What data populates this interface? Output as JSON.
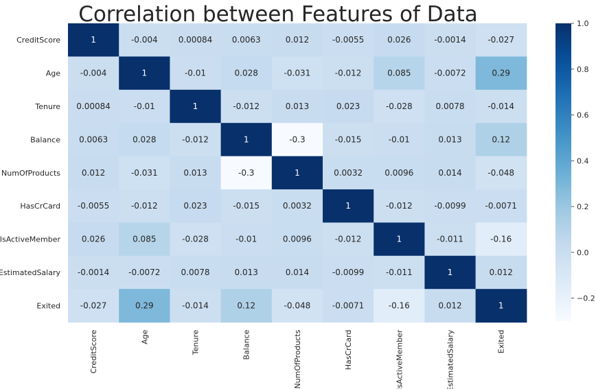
{
  "chart_data": {
    "type": "heatmap",
    "title": "Correlation between Features of Data",
    "xlabel": "",
    "ylabel": "",
    "labels": [
      "CreditScore",
      "Age",
      "Tenure",
      "Balance",
      "NumOfProducts",
      "HasCrCard",
      "IsActiveMember",
      "EstimatedSalary",
      "Exited"
    ],
    "matrix": [
      [
        1,
        -0.004,
        0.00084,
        0.0063,
        0.012,
        -0.0055,
        0.026,
        -0.0014,
        -0.027
      ],
      [
        -0.004,
        1,
        -0.01,
        0.028,
        -0.031,
        -0.012,
        0.085,
        -0.0072,
        0.29
      ],
      [
        0.00084,
        -0.01,
        1,
        -0.012,
        0.013,
        0.023,
        -0.028,
        0.0078,
        -0.014
      ],
      [
        0.0063,
        0.028,
        -0.012,
        1,
        -0.3,
        -0.015,
        -0.01,
        0.013,
        0.12
      ],
      [
        0.012,
        -0.031,
        0.013,
        -0.3,
        1,
        0.0032,
        0.0096,
        0.014,
        -0.048
      ],
      [
        -0.0055,
        -0.012,
        0.023,
        -0.015,
        0.0032,
        1,
        -0.012,
        -0.0099,
        -0.0071
      ],
      [
        0.026,
        0.085,
        -0.028,
        -0.01,
        0.0096,
        -0.012,
        1,
        -0.011,
        -0.16
      ],
      [
        -0.0014,
        -0.0072,
        0.0078,
        0.013,
        0.014,
        -0.0099,
        -0.011,
        1,
        0.012
      ],
      [
        -0.027,
        0.29,
        -0.014,
        0.12,
        -0.048,
        -0.0071,
        -0.16,
        0.012,
        1
      ]
    ],
    "annotations": [
      [
        "1",
        "-0.004",
        "0.00084",
        "0.0063",
        "0.012",
        "-0.0055",
        "0.026",
        "-0.0014",
        "-0.027"
      ],
      [
        "-0.004",
        "1",
        "-0.01",
        "0.028",
        "-0.031",
        "-0.012",
        "0.085",
        "-0.0072",
        "0.29"
      ],
      [
        "0.00084",
        "-0.01",
        "1",
        "-0.012",
        "0.013",
        "0.023",
        "-0.028",
        "0.0078",
        "-0.014"
      ],
      [
        "0.0063",
        "0.028",
        "-0.012",
        "1",
        "-0.3",
        "-0.015",
        "-0.01",
        "0.013",
        "0.12"
      ],
      [
        "0.012",
        "-0.031",
        "0.013",
        "-0.3",
        "1",
        "0.0032",
        "0.0096",
        "0.014",
        "-0.048"
      ],
      [
        "-0.0055",
        "-0.012",
        "0.023",
        "-0.015",
        "0.0032",
        "1",
        "-0.012",
        "-0.0099",
        "-0.0071"
      ],
      [
        "0.026",
        "0.085",
        "-0.028",
        "-0.01",
        "0.0096",
        "-0.012",
        "1",
        "-0.011",
        "-0.16"
      ],
      [
        "-0.0014",
        "-0.0072",
        "0.0078",
        "0.013",
        "0.014",
        "-0.0099",
        "-0.011",
        "1",
        "0.012"
      ],
      [
        "-0.027",
        "0.29",
        "-0.014",
        "0.12",
        "-0.048",
        "-0.0071",
        "-0.16",
        "0.012",
        "1"
      ]
    ],
    "colorscale": "Blues",
    "vmin": -0.3,
    "vmax": 1,
    "colorbar": {
      "ticks": [
        1.0,
        0.8,
        0.6,
        0.4,
        0.2,
        0.0,
        -0.2
      ],
      "tick_labels": [
        "1.0",
        "0.8",
        "0.6",
        "0.4",
        "0.2",
        "0.0",
        "−0.2"
      ]
    },
    "grid": false
  }
}
